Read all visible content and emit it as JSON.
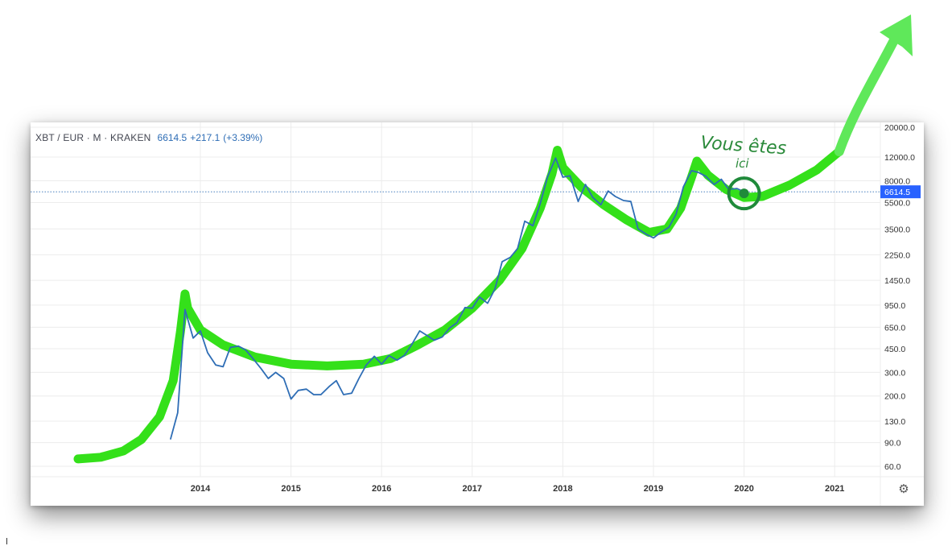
{
  "header": {
    "symbol": "XBT / EUR · M · KRAKEN",
    "price": "6614.5",
    "change": "+217.1",
    "change_pct": "(+3.39%)"
  },
  "annotation": {
    "line1": "Vous êtes",
    "line2": "ici"
  },
  "price_label": "6614.5",
  "icons": {
    "settings": "gear-icon",
    "arrow": "arrow-up-icon"
  },
  "colors": {
    "line": "#2e6db5",
    "trend": "#34e01a",
    "annotation": "#1f8a3a",
    "label_bg": "#2962ff"
  },
  "chart_data": {
    "type": "line",
    "title": "",
    "xlabel": "",
    "ylabel": "",
    "y_scale": "log",
    "x_ticks": [
      "2014",
      "2015",
      "2016",
      "2017",
      "2018",
      "2019",
      "2020",
      "2021"
    ],
    "y_ticks": [
      60,
      90,
      130,
      200,
      300,
      450,
      650,
      950,
      1450,
      2250,
      3500,
      5500,
      8000,
      12000,
      20000
    ],
    "y_tick_labels": [
      "60.0",
      "90.0",
      "130.0",
      "200.0",
      "300.0",
      "450.0",
      "650.0",
      "950.0",
      "1450.0",
      "2250.0",
      "3500.0",
      "5500.0",
      "8000.0",
      "12000.0",
      "20000.0"
    ],
    "ylim": [
      50,
      20000
    ],
    "xlim": [
      2012.65,
      2021.5
    ],
    "current_price": 6614.5,
    "series": [
      {
        "points": [
          [
            2013.67,
            95
          ],
          [
            2013.75,
            150
          ],
          [
            2013.83,
            880
          ],
          [
            2013.92,
            540
          ],
          [
            2014.0,
            610
          ],
          [
            2014.08,
            420
          ],
          [
            2014.17,
            340
          ],
          [
            2014.25,
            330
          ],
          [
            2014.33,
            460
          ],
          [
            2014.42,
            470
          ],
          [
            2014.5,
            440
          ],
          [
            2014.58,
            380
          ],
          [
            2014.67,
            320
          ],
          [
            2014.75,
            270
          ],
          [
            2014.83,
            300
          ],
          [
            2014.92,
            270
          ],
          [
            2015.0,
            190
          ],
          [
            2015.08,
            220
          ],
          [
            2015.17,
            225
          ],
          [
            2015.25,
            205
          ],
          [
            2015.33,
            205
          ],
          [
            2015.42,
            235
          ],
          [
            2015.5,
            260
          ],
          [
            2015.58,
            205
          ],
          [
            2015.67,
            210
          ],
          [
            2015.75,
            270
          ],
          [
            2015.83,
            340
          ],
          [
            2015.92,
            395
          ],
          [
            2016.0,
            345
          ],
          [
            2016.08,
            400
          ],
          [
            2016.17,
            370
          ],
          [
            2016.25,
            400
          ],
          [
            2016.33,
            480
          ],
          [
            2016.42,
            610
          ],
          [
            2016.5,
            565
          ],
          [
            2016.58,
            520
          ],
          [
            2016.67,
            550
          ],
          [
            2016.75,
            640
          ],
          [
            2016.83,
            700
          ],
          [
            2016.92,
            910
          ],
          [
            2017.0,
            900
          ],
          [
            2017.08,
            1090
          ],
          [
            2017.17,
            980
          ],
          [
            2017.25,
            1250
          ],
          [
            2017.33,
            2000
          ],
          [
            2017.42,
            2150
          ],
          [
            2017.5,
            2500
          ],
          [
            2017.58,
            4000
          ],
          [
            2017.67,
            3700
          ],
          [
            2017.75,
            5400
          ],
          [
            2017.83,
            8500
          ],
          [
            2017.92,
            11800
          ],
          [
            2018.0,
            8500
          ],
          [
            2018.08,
            8700
          ],
          [
            2018.17,
            5600
          ],
          [
            2018.25,
            7500
          ],
          [
            2018.33,
            6000
          ],
          [
            2018.42,
            5300
          ],
          [
            2018.5,
            6700
          ],
          [
            2018.58,
            6100
          ],
          [
            2018.67,
            5700
          ],
          [
            2018.75,
            5600
          ],
          [
            2018.83,
            3500
          ],
          [
            2018.92,
            3200
          ],
          [
            2019.0,
            3000
          ],
          [
            2019.08,
            3300
          ],
          [
            2019.17,
            3600
          ],
          [
            2019.25,
            4500
          ],
          [
            2019.33,
            7200
          ],
          [
            2019.42,
            9500
          ],
          [
            2019.5,
            9200
          ],
          [
            2019.58,
            8600
          ],
          [
            2019.67,
            7500
          ],
          [
            2019.75,
            8200
          ],
          [
            2019.83,
            6900
          ],
          [
            2019.92,
            7000
          ],
          [
            2020.0,
            6614.5
          ]
        ]
      }
    ]
  }
}
